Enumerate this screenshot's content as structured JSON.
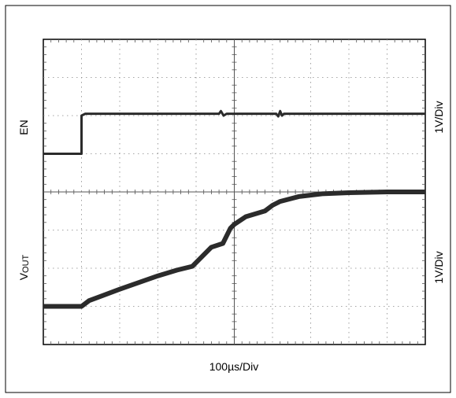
{
  "chart_data": {
    "type": "line",
    "title": "",
    "xlabel": "100µs/Div",
    "x_divisions": 10,
    "y_divisions": 8,
    "grid": true,
    "x_unit": "div",
    "series": [
      {
        "name": "EN",
        "channel_label": "EN",
        "scale_label": "1V/Div",
        "x": [
          0,
          1.0,
          1.0,
          1.1,
          4.6,
          4.65,
          4.72,
          4.8,
          6.1,
          6.15,
          6.2,
          6.25,
          6.3,
          10
        ],
        "y": [
          5.0,
          5.0,
          6.0,
          6.05,
          6.05,
          6.12,
          6.0,
          6.05,
          6.05,
          5.98,
          6.12,
          6.0,
          6.05,
          6.05
        ]
      },
      {
        "name": "VOUT",
        "channel_label_main": "V",
        "channel_label_sub": "OUT",
        "scale_label": "1V/Div",
        "x": [
          0,
          1.0,
          1.2,
          2.0,
          3.0,
          3.5,
          3.9,
          4.4,
          4.7,
          4.9,
          5.0,
          5.3,
          5.8,
          6.0,
          6.2,
          6.7,
          7.3,
          8.0,
          9.0,
          10
        ],
        "y": [
          1.0,
          1.0,
          1.15,
          1.45,
          1.8,
          1.95,
          2.05,
          2.55,
          2.65,
          3.05,
          3.15,
          3.35,
          3.5,
          3.65,
          3.75,
          3.88,
          3.95,
          3.98,
          4.0,
          4.0
        ]
      }
    ]
  }
}
